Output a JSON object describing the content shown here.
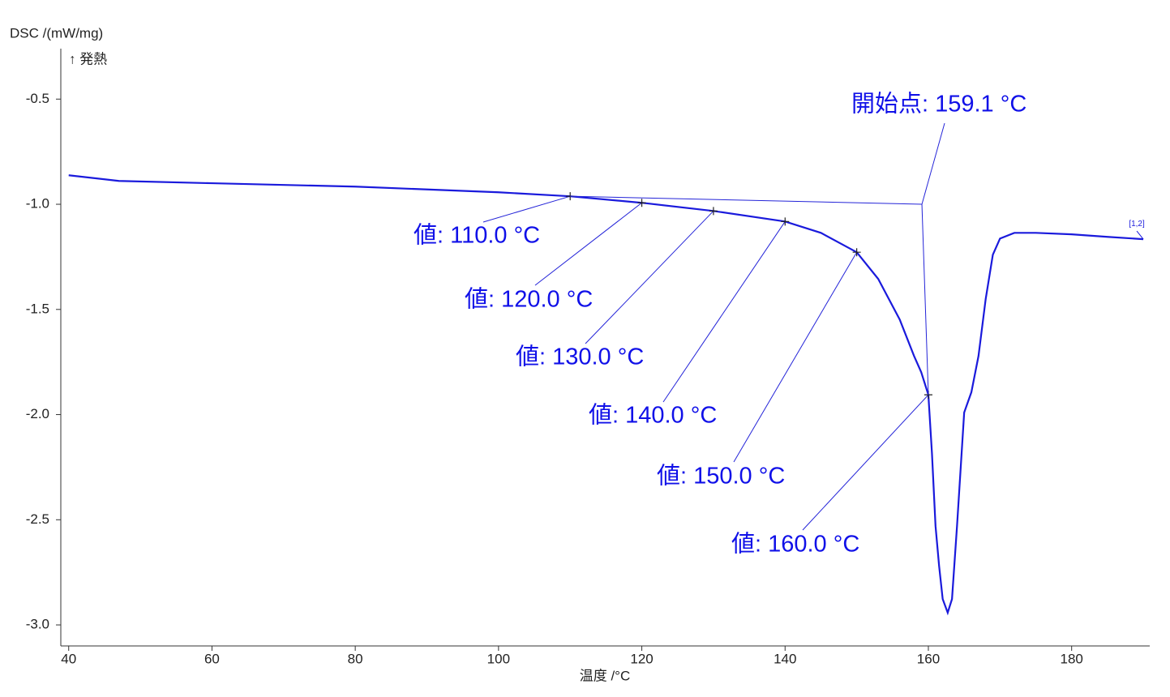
{
  "chart_data": {
    "type": "line",
    "ylabel": "DSC /(mW/mg)",
    "exo_label": "↑ 発熱",
    "xlabel": "温度 /°C",
    "xlim": [
      38.9,
      190.9
    ],
    "ylim": [
      -3.1,
      -0.26
    ],
    "xticks": [
      40,
      60,
      80,
      100,
      120,
      140,
      160,
      180
    ],
    "yticks": [
      -0.5,
      {
        "value": -1.0,
        "label": "-1.0"
      },
      -1.5,
      {
        "value": -2.0,
        "label": "-2.0"
      },
      -2.5,
      {
        "value": -3.0,
        "label": "-3.0"
      }
    ],
    "series": [
      {
        "name": "[1,2]",
        "color": "#1a1adc",
        "x": [
          40,
          47,
          60,
          80,
          100,
          110,
          120,
          130,
          140,
          145,
          150,
          153,
          156,
          158,
          159,
          160,
          160.5,
          161,
          161.5,
          162,
          162.7,
          163.3,
          164,
          165,
          166,
          167,
          168,
          169,
          170,
          172,
          175,
          180,
          185,
          190
        ],
        "values": [
          -0.862,
          -0.889,
          -0.9,
          -0.916,
          -0.943,
          -0.962,
          -0.993,
          -1.032,
          -1.082,
          -1.136,
          -1.228,
          -1.355,
          -1.548,
          -1.721,
          -1.798,
          -1.906,
          -2.183,
          -2.53,
          -2.72,
          -2.877,
          -2.942,
          -2.877,
          -2.53,
          -1.99,
          -1.894,
          -1.721,
          -1.451,
          -1.24,
          -1.163,
          -1.136,
          -1.136,
          -1.143,
          -1.155,
          -1.166
        ]
      }
    ],
    "markers": [
      {
        "x": 110,
        "y": -0.962,
        "label": "値: 110.0 °C"
      },
      {
        "x": 120,
        "y": -0.993,
        "label": "値: 120.0 °C"
      },
      {
        "x": 130,
        "y": -1.032,
        "label": "値: 130.0 °C"
      },
      {
        "x": 140,
        "y": -1.082,
        "label": "値: 140.0 °C"
      },
      {
        "x": 150,
        "y": -1.228,
        "label": "値: 150.0 °C"
      },
      {
        "x": 160,
        "y": -1.906,
        "label": "値: 160.0 °C"
      }
    ],
    "onset": {
      "x": 159.1,
      "y": -1.0,
      "label": "開始点: 159.1 °C"
    }
  }
}
